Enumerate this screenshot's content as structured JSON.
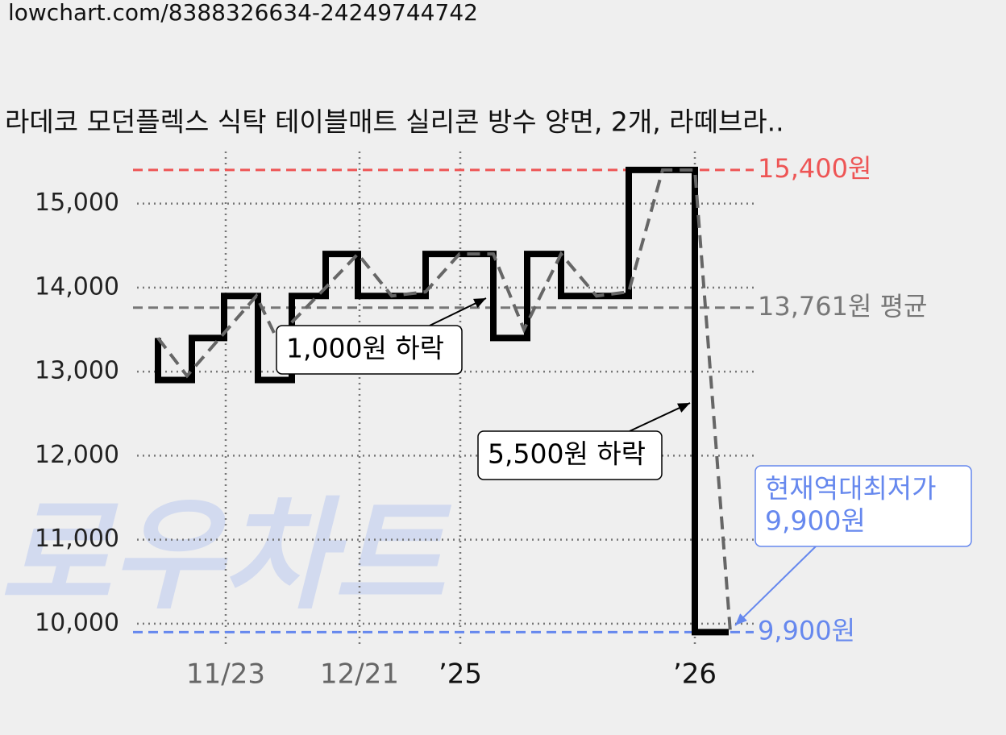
{
  "page_url": "lowchart.com/8388326634-24249744742",
  "watermark": "로우차트",
  "chart_data": {
    "type": "line",
    "title": "라데코 모던플렉스 식탁 테이블매트 실리콘 방수 양면, 2개, 라떼브라..",
    "xlim": [
      0,
      76.5
    ],
    "xticks": [
      {
        "value": 11,
        "label": "11/23"
      },
      {
        "value": 27.6,
        "label": "12/21"
      },
      {
        "value": 40.1,
        "label": "’25"
      },
      {
        "value": 69.2,
        "label": "’26"
      }
    ],
    "ylim": [
      9750,
      15600
    ],
    "yticks": [
      {
        "value": 10000,
        "label": "10,000"
      },
      {
        "value": 11000,
        "label": "11,000"
      },
      {
        "value": 12000,
        "label": "12,000"
      },
      {
        "value": 13000,
        "label": "13,000"
      },
      {
        "value": 14000,
        "label": "14,000"
      },
      {
        "value": 15000,
        "label": "15,000"
      }
    ],
    "grid": true,
    "series": [
      {
        "color": "#000000",
        "style": "step",
        "x": [
          2.6,
          2.6,
          6.8,
          10.8,
          15.0,
          19.2,
          23.4,
          27.4,
          35.8,
          44.2,
          48.4,
          52.6,
          61.0,
          69.2,
          73.4
        ],
        "values": [
          13400,
          12900,
          13400,
          13900,
          12900,
          13900,
          14400,
          13900,
          14400,
          13400,
          14400,
          13900,
          15400,
          9900,
          9900
        ]
      },
      {
        "color": "#666666",
        "style": "dashed",
        "x": [
          2.6,
          6.2,
          14.8,
          17.3,
          23.4,
          27.4,
          31.6,
          35.8,
          40.0,
          44.2,
          48.0,
          52.6,
          57.0,
          61.0,
          65.2,
          69.2,
          73.6
        ],
        "values": [
          13400,
          12950,
          13900,
          13400,
          14000,
          14400,
          13900,
          13950,
          14400,
          14400,
          13500,
          14400,
          13900,
          13950,
          15400,
          15400,
          9900
        ]
      }
    ],
    "reference_lines": [
      {
        "value": 15400,
        "label": "15,400원",
        "color": "#ee5555"
      },
      {
        "value": 13761,
        "label": "13,761원 평균",
        "color": "#777777"
      },
      {
        "value": 9900,
        "label": "9,900원",
        "color": "#6688ee"
      }
    ],
    "annotations": [
      {
        "lines": [
          "1,000원 하락"
        ],
        "color": "#000000"
      },
      {
        "lines": [
          "5,500원 하락"
        ],
        "color": "#000000"
      },
      {
        "lines": [
          "현재역대최저가",
          "9,900원"
        ],
        "color": "#6688ee"
      }
    ]
  }
}
